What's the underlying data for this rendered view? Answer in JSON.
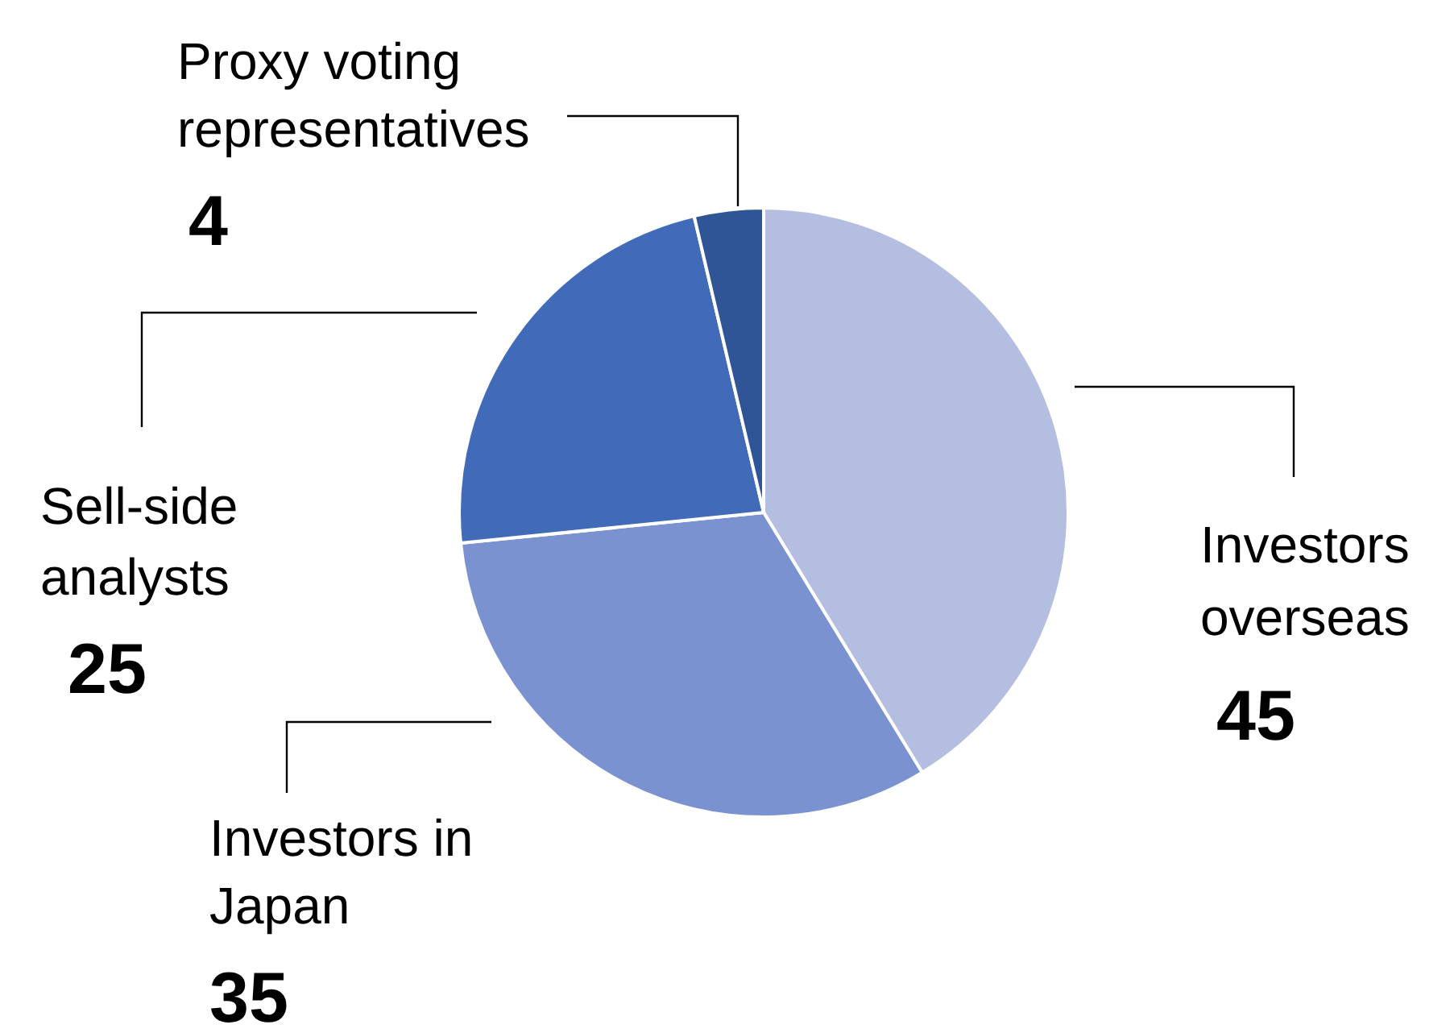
{
  "chart_data": {
    "type": "pie",
    "categories": [
      "Investors overseas",
      "Investors in Japan",
      "Sell-side analysts",
      "Proxy voting representatives"
    ],
    "values": [
      45,
      35,
      25,
      4
    ],
    "colors": [
      "#b4bee0",
      "#7a92cf",
      "#416bb8",
      "#2f5597"
    ],
    "data_labels": true,
    "legend": false
  }
}
